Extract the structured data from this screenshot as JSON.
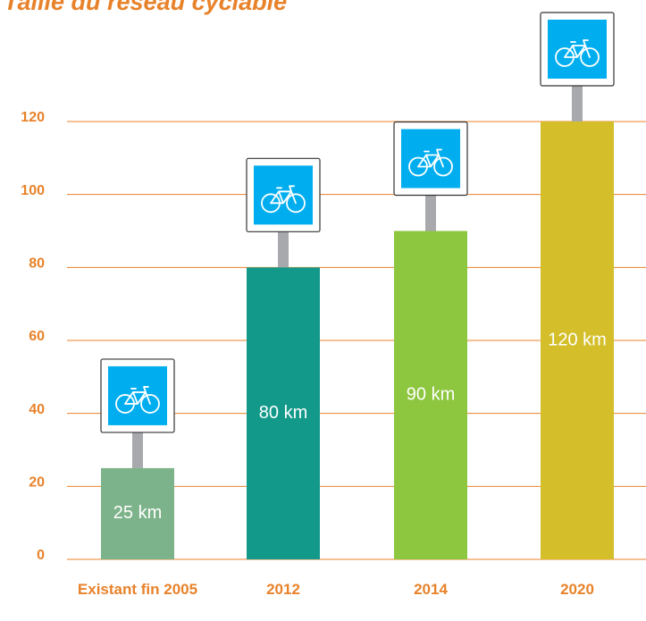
{
  "chart_data": {
    "type": "bar",
    "title": "Taille du réseau cyclable",
    "categories": [
      "Existant fin 2005",
      "2012",
      "2014",
      "2020"
    ],
    "values": [
      25,
      80,
      90,
      120
    ],
    "value_labels": [
      "25 km",
      "80 km",
      "90 km",
      "120 km"
    ],
    "colors": [
      "#7db38a",
      "#12998a",
      "#8dc63f",
      "#d4bf2a"
    ],
    "ylim": [
      0,
      120
    ],
    "yticks": [
      0,
      20,
      40,
      60,
      80,
      100,
      120
    ],
    "grid": true
  }
}
